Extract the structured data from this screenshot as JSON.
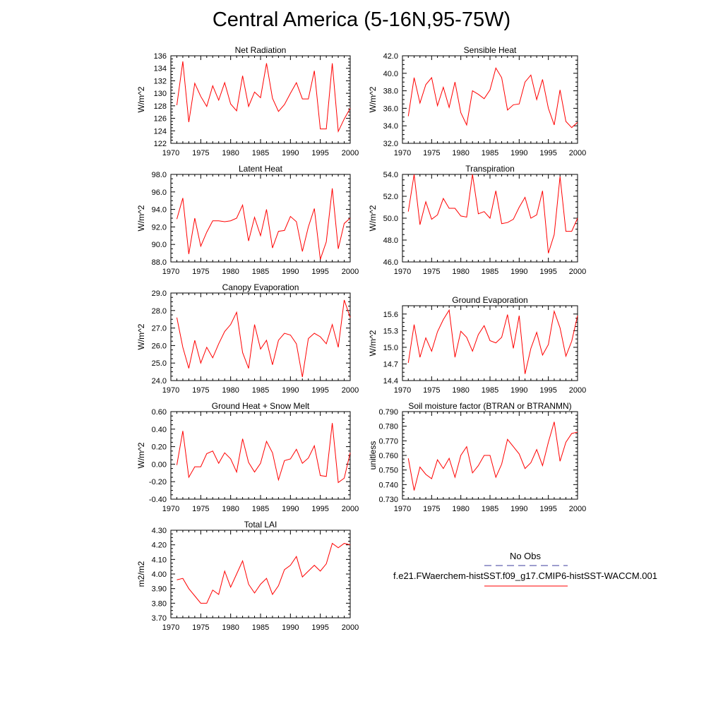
{
  "title": "Central America (5-16N,95-75W)",
  "legend": {
    "obs_label": "No Obs",
    "model_label": "f.e21.FWaerchem-histSST.f09_g17.CMIP6-histSST-WACCM.001",
    "obs_color": "#3b3b9e",
    "model_color": "#ff0000"
  },
  "chart_data": [
    {
      "type": "line",
      "title": "Net Radiation",
      "ylabel": "W/m^2",
      "xlim": [
        1970,
        2000
      ],
      "ylim": [
        122,
        136
      ],
      "xticks": [
        "1970",
        "1975",
        "1980",
        "1985",
        "1990",
        "1995",
        "2000"
      ],
      "yticks": [
        "122",
        "124",
        "126",
        "128",
        "130",
        "132",
        "134",
        "136"
      ],
      "x": [
        1971,
        1972,
        1973,
        1974,
        1975,
        1976,
        1977,
        1978,
        1979,
        1980,
        1981,
        1982,
        1983,
        1984,
        1985,
        1986,
        1987,
        1988,
        1989,
        1990,
        1991,
        1992,
        1993,
        1994,
        1995,
        1996,
        1997,
        1998,
        1999,
        2000
      ],
      "series": [
        {
          "values": [
            128.1,
            135.1,
            125.4,
            131.6,
            129.5,
            127.9,
            131.2,
            128.9,
            131.7,
            128.3,
            127.2,
            132.8,
            127.9,
            130.2,
            129.3,
            134.8,
            129.2,
            127.1,
            128.2,
            130.0,
            131.7,
            129.1,
            129.1,
            133.6,
            124.3,
            124.3,
            134.8,
            123.9,
            125.9,
            127.6
          ]
        }
      ]
    },
    {
      "type": "line",
      "title": "Sensible Heat",
      "ylabel": "W/m^2",
      "xlim": [
        1970,
        2000
      ],
      "ylim": [
        32,
        42
      ],
      "xticks": [
        "1970",
        "1975",
        "1980",
        "1985",
        "1990",
        "1995",
        "2000"
      ],
      "yticks": [
        "32.0",
        "34.0",
        "36.0",
        "38.0",
        "40.0",
        "42.0"
      ],
      "x": [
        1971,
        1972,
        1973,
        1974,
        1975,
        1976,
        1977,
        1978,
        1979,
        1980,
        1981,
        1982,
        1983,
        1984,
        1985,
        1986,
        1987,
        1988,
        1989,
        1990,
        1991,
        1992,
        1993,
        1994,
        1995,
        1996,
        1997,
        1998,
        1999,
        2000
      ],
      "series": [
        {
          "values": [
            35.1,
            39.5,
            36.6,
            38.7,
            39.5,
            36.3,
            38.4,
            36.1,
            39.0,
            35.5,
            34.1,
            38.0,
            37.6,
            37.1,
            38.1,
            40.6,
            39.5,
            35.8,
            36.4,
            36.5,
            39.0,
            39.8,
            37.0,
            39.3,
            36.0,
            34.1,
            38.1,
            34.5,
            33.8,
            34.4
          ]
        }
      ]
    },
    {
      "type": "line",
      "title": "Latent Heat",
      "ylabel": "W/m^2",
      "xlim": [
        1970,
        2000
      ],
      "ylim": [
        88,
        98
      ],
      "xticks": [
        "1970",
        "1975",
        "1980",
        "1985",
        "1990",
        "1995",
        "2000"
      ],
      "yticks": [
        "88.0",
        "90.0",
        "92.0",
        "94.0",
        "96.0",
        "98.0"
      ],
      "x": [
        1971,
        1972,
        1973,
        1974,
        1975,
        1976,
        1977,
        1978,
        1979,
        1980,
        1981,
        1982,
        1983,
        1984,
        1985,
        1986,
        1987,
        1988,
        1989,
        1990,
        1991,
        1992,
        1993,
        1994,
        1995,
        1996,
        1997,
        1998,
        1999,
        2000
      ],
      "series": [
        {
          "values": [
            92.9,
            95.3,
            88.9,
            93.0,
            89.8,
            91.4,
            92.7,
            92.7,
            92.6,
            92.7,
            93.0,
            94.5,
            90.4,
            93.1,
            91.0,
            94.0,
            89.6,
            91.5,
            91.6,
            93.2,
            92.6,
            89.2,
            92.0,
            94.1,
            88.3,
            90.3,
            96.4,
            89.5,
            92.4,
            93.0
          ]
        }
      ]
    },
    {
      "type": "line",
      "title": "Transpiration",
      "ylabel": "W/m^2",
      "xlim": [
        1970,
        2000
      ],
      "ylim": [
        46,
        54
      ],
      "xticks": [
        "1970",
        "1975",
        "1980",
        "1985",
        "1990",
        "1995",
        "2000"
      ],
      "yticks": [
        "46.0",
        "48.0",
        "50.0",
        "52.0",
        "54.0"
      ],
      "x": [
        1971,
        1972,
        1973,
        1974,
        1975,
        1976,
        1977,
        1978,
        1979,
        1980,
        1981,
        1982,
        1983,
        1984,
        1985,
        1986,
        1987,
        1988,
        1989,
        1990,
        1991,
        1992,
        1993,
        1994,
        1995,
        1996,
        1997,
        1998,
        1999,
        2000
      ],
      "series": [
        {
          "values": [
            50.6,
            54.0,
            49.4,
            51.5,
            49.9,
            50.3,
            51.8,
            50.9,
            50.9,
            50.2,
            50.1,
            54.0,
            50.4,
            50.6,
            50.0,
            52.5,
            49.5,
            49.6,
            49.9,
            51.0,
            51.9,
            50.0,
            50.3,
            52.5,
            46.8,
            48.5,
            53.8,
            48.8,
            48.8,
            50.0
          ]
        }
      ]
    },
    {
      "type": "line",
      "title": "Canopy Evaporation",
      "ylabel": "W/m^2",
      "xlim": [
        1970,
        2000
      ],
      "ylim": [
        24,
        29
      ],
      "xticks": [
        "1970",
        "1975",
        "1980",
        "1985",
        "1990",
        "1995",
        "2000"
      ],
      "yticks": [
        "24.0",
        "25.0",
        "26.0",
        "27.0",
        "28.0",
        "29.0"
      ],
      "x": [
        1971,
        1972,
        1973,
        1974,
        1975,
        1976,
        1977,
        1978,
        1979,
        1980,
        1981,
        1982,
        1983,
        1984,
        1985,
        1986,
        1987,
        1988,
        1989,
        1990,
        1991,
        1992,
        1993,
        1994,
        1995,
        1996,
        1997,
        1998,
        1999,
        2000
      ],
      "series": [
        {
          "values": [
            27.6,
            25.9,
            24.7,
            26.3,
            25.0,
            25.9,
            25.3,
            26.1,
            26.8,
            27.2,
            27.9,
            25.6,
            24.7,
            27.2,
            25.8,
            26.3,
            24.9,
            26.3,
            26.7,
            26.6,
            26.1,
            24.2,
            26.4,
            26.7,
            26.5,
            26.1,
            27.2,
            25.9,
            28.6,
            27.6
          ]
        }
      ]
    },
    {
      "type": "line",
      "title": "Ground Evaporation",
      "ylabel": "W/m^2",
      "xlim": [
        1970,
        2000
      ],
      "ylim": [
        14.4,
        15.75
      ],
      "xticks": [
        "1970",
        "1975",
        "1980",
        "1985",
        "1990",
        "1995",
        "2000"
      ],
      "yticks": [
        "14.4",
        "14.7",
        "15.0",
        "15.3",
        "15.6"
      ],
      "x": [
        1971,
        1972,
        1973,
        1974,
        1975,
        1976,
        1977,
        1978,
        1979,
        1980,
        1981,
        1982,
        1983,
        1984,
        1985,
        1986,
        1987,
        1988,
        1989,
        1990,
        1991,
        1992,
        1993,
        1994,
        1995,
        1996,
        1997,
        1998,
        1999,
        2000
      ],
      "series": [
        {
          "values": [
            14.72,
            15.41,
            14.82,
            15.17,
            14.93,
            15.28,
            15.5,
            15.67,
            14.82,
            15.29,
            15.18,
            14.93,
            15.23,
            15.39,
            15.12,
            15.08,
            15.18,
            15.59,
            14.98,
            15.57,
            14.52,
            14.98,
            15.27,
            14.86,
            15.05,
            15.65,
            15.35,
            14.84,
            15.11,
            15.57
          ]
        }
      ]
    },
    {
      "type": "line",
      "title": "Ground Heat + Snow Melt",
      "ylabel": "W/m^2",
      "xlim": [
        1970,
        2000
      ],
      "ylim": [
        -0.4,
        0.6
      ],
      "xticks": [
        "1970",
        "1975",
        "1980",
        "1985",
        "1990",
        "1995",
        "2000"
      ],
      "yticks": [
        "-0.40",
        "-0.20",
        "0.00",
        "0.20",
        "0.40",
        "0.60"
      ],
      "x": [
        1971,
        1972,
        1973,
        1974,
        1975,
        1976,
        1977,
        1978,
        1979,
        1980,
        1981,
        1982,
        1983,
        1984,
        1985,
        1986,
        1987,
        1988,
        1989,
        1990,
        1991,
        1992,
        1993,
        1994,
        1995,
        1996,
        1997,
        1998,
        1999,
        2000
      ],
      "series": [
        {
          "values": [
            -0.01,
            0.38,
            -0.15,
            -0.03,
            -0.03,
            0.12,
            0.15,
            0.01,
            0.13,
            0.06,
            -0.09,
            0.29,
            0.02,
            -0.09,
            0.01,
            0.26,
            0.13,
            -0.18,
            0.04,
            0.06,
            0.17,
            0.01,
            0.07,
            0.21,
            -0.13,
            -0.14,
            0.47,
            -0.21,
            -0.16,
            0.13
          ]
        }
      ]
    },
    {
      "type": "line",
      "title": "Soil moisture factor (BTRAN or BTRANMN)",
      "ylabel": "unitless",
      "xlim": [
        1970,
        2000
      ],
      "ylim": [
        0.73,
        0.79
      ],
      "xticks": [
        "1970",
        "1975",
        "1980",
        "1985",
        "1990",
        "1995",
        "2000"
      ],
      "yticks": [
        "0.730",
        "0.740",
        "0.750",
        "0.760",
        "0.770",
        "0.780",
        "0.790"
      ],
      "x": [
        1971,
        1972,
        1973,
        1974,
        1975,
        1976,
        1977,
        1978,
        1979,
        1980,
        1981,
        1982,
        1983,
        1984,
        1985,
        1986,
        1987,
        1988,
        1989,
        1990,
        1991,
        1992,
        1993,
        1994,
        1995,
        1996,
        1997,
        1998,
        1999,
        2000
      ],
      "series": [
        {
          "values": [
            0.758,
            0.736,
            0.752,
            0.747,
            0.744,
            0.757,
            0.751,
            0.758,
            0.745,
            0.76,
            0.766,
            0.748,
            0.753,
            0.76,
            0.76,
            0.745,
            0.754,
            0.771,
            0.766,
            0.761,
            0.751,
            0.755,
            0.764,
            0.753,
            0.769,
            0.783,
            0.756,
            0.769,
            0.775,
            0.776
          ]
        }
      ]
    },
    {
      "type": "line",
      "title": "Total LAI",
      "ylabel": "m2/m2",
      "xlim": [
        1970,
        2000
      ],
      "ylim": [
        3.7,
        4.3
      ],
      "xticks": [
        "1970",
        "1975",
        "1980",
        "1985",
        "1990",
        "1995",
        "2000"
      ],
      "yticks": [
        "3.70",
        "3.80",
        "3.90",
        "4.00",
        "4.10",
        "4.20",
        "4.30"
      ],
      "x": [
        1971,
        1972,
        1973,
        1974,
        1975,
        1976,
        1977,
        1978,
        1979,
        1980,
        1981,
        1982,
        1983,
        1984,
        1985,
        1986,
        1987,
        1988,
        1989,
        1990,
        1991,
        1992,
        1993,
        1994,
        1995,
        1996,
        1997,
        1998,
        1999,
        2000
      ],
      "series": [
        {
          "values": [
            3.96,
            3.97,
            3.9,
            3.85,
            3.8,
            3.8,
            3.89,
            3.86,
            4.02,
            3.91,
            4.0,
            4.09,
            3.93,
            3.87,
            3.93,
            3.97,
            3.86,
            3.92,
            4.03,
            4.06,
            4.12,
            3.98,
            4.02,
            4.06,
            4.02,
            4.07,
            4.21,
            4.18,
            4.21,
            4.2
          ]
        }
      ]
    }
  ]
}
